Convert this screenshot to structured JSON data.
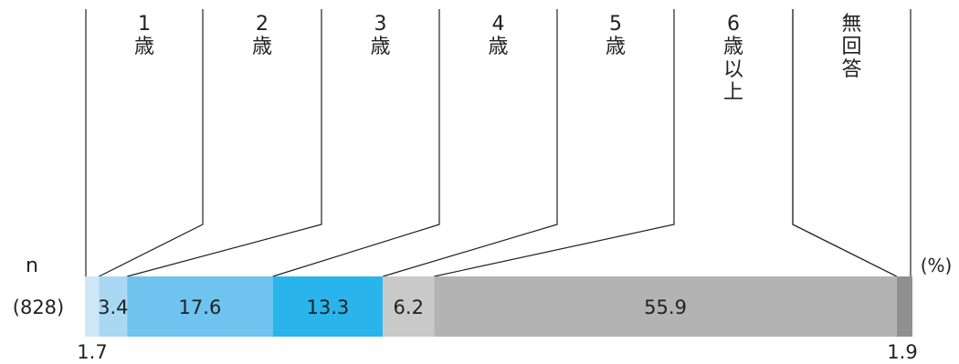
{
  "chart_data": {
    "type": "bar",
    "orientation": "horizontal",
    "stacked": true,
    "n_label": "n",
    "unit_label": "(%)",
    "sample_label": "(828)",
    "xlim": [
      0,
      100
    ],
    "series": [
      {
        "name": "1歳",
        "name_lines": [
          "1",
          "歳"
        ],
        "value": 1.7,
        "color": "#cfe6f7",
        "label": "1.7",
        "label_position": "below"
      },
      {
        "name": "2歳",
        "name_lines": [
          "2",
          "歳"
        ],
        "value": 3.4,
        "color": "#a9d8f3",
        "label": "3.4",
        "label_position": "inside"
      },
      {
        "name": "3歳",
        "name_lines": [
          "3",
          "歳"
        ],
        "value": 17.6,
        "color": "#6ec3ef",
        "label": "17.6",
        "label_position": "inside"
      },
      {
        "name": "4歳",
        "name_lines": [
          "4",
          "歳"
        ],
        "value": 13.3,
        "color": "#2ab4ec",
        "label": "13.3",
        "label_position": "inside"
      },
      {
        "name": "5歳",
        "name_lines": [
          "5",
          "歳"
        ],
        "value": 6.2,
        "color": "#c9c9c9",
        "label": "6.2",
        "label_position": "inside"
      },
      {
        "name": "6歳以上",
        "name_lines": [
          "6",
          "歳",
          "以",
          "上"
        ],
        "value": 55.9,
        "color": "#b3b3b3",
        "label": "55.9",
        "label_position": "inside"
      },
      {
        "name": "無回答",
        "name_lines": [
          "無",
          "回",
          "答"
        ],
        "value": 1.9,
        "color": "#909090",
        "label": "1.9",
        "label_position": "below"
      }
    ]
  }
}
